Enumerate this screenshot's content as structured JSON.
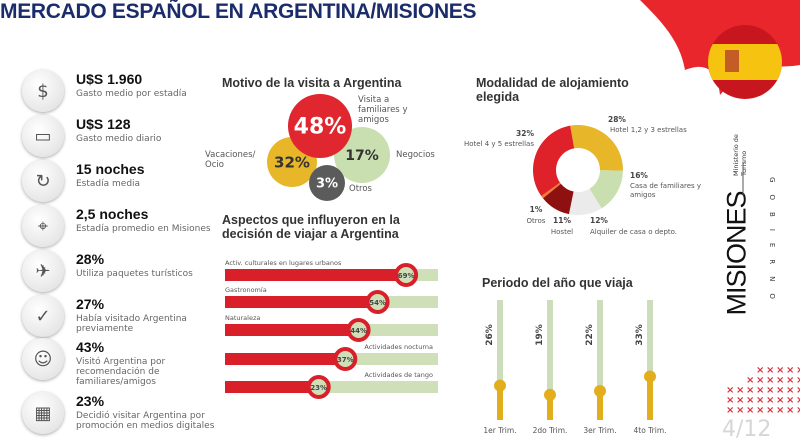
{
  "title": "MERCADO ESPAÑOL EN ARGENTINA/MISIONES",
  "stats": [
    {
      "value": "U$S 1.960",
      "desc": "Gasto medio por estadía",
      "icon": "money-chart-icon"
    },
    {
      "value": "U$S 128",
      "desc": "Gasto medio diario",
      "icon": "wallet-icon"
    },
    {
      "value": "15 noches",
      "desc": "Estadía media",
      "icon": "clock-cycle-icon"
    },
    {
      "value": "2,5 noches",
      "desc": "Estadía promedio en Misiones",
      "icon": "map-pin-icon"
    },
    {
      "value": "28%",
      "desc": "Utiliza paquetes turísticos",
      "icon": "luggage-plane-icon"
    },
    {
      "value": "27%",
      "desc": "Había visitado Argentina previamente",
      "icon": "repeat-check-icon"
    },
    {
      "value": "43%",
      "desc": "Visitó Argentina por recomendación de familiares/amigos",
      "icon": "people-icon"
    },
    {
      "value": "23%",
      "desc": "Decidió visitar Argentina por promoción en medios digitales",
      "icon": "digital-media-icon"
    }
  ],
  "chart_data": [
    {
      "type": "bubble",
      "title": "Motivo de la visita a Argentina",
      "categories": [
        "Visita a familiares y amigos",
        "Vacaciones/ Ocio",
        "Negocios",
        "Otros"
      ],
      "values": [
        48,
        32,
        17,
        3
      ],
      "labels": [
        "48%",
        "32%",
        "17%",
        "3%"
      ],
      "colors": [
        "#e0262e",
        "#e8b629",
        "#c9dfb0",
        "#5b5b5b"
      ]
    },
    {
      "type": "bar",
      "title": "Aspectos que influyeron en la decisión de viajar a Argentina",
      "categories": [
        "Activ. culturales en lugares urbanos",
        "Gastronomía",
        "Naturaleza",
        "Actividades nocturna",
        "Actividades de tango"
      ],
      "values": [
        69,
        54,
        44,
        37,
        23
      ],
      "labels": [
        "69%",
        "54%",
        "44%",
        "37%",
        "23%"
      ],
      "ylim": [
        0,
        100
      ],
      "colors": {
        "fill": "#d9202a",
        "track": "#cfe0b8"
      }
    },
    {
      "type": "pie",
      "title": "Modalidad de alojamiento elegida",
      "categories": [
        "Hotel 1,2 y 3 estrellas",
        "Casa de familiares y amigos",
        "Alquiler de casa o depto.",
        "Hostel",
        "Otros",
        "Hotel 4 y 5 estrellas"
      ],
      "values": [
        28,
        16,
        12,
        11,
        1,
        32
      ],
      "labels": [
        "28%",
        "16%",
        "12%",
        "11%",
        "1%",
        "32%"
      ],
      "colors": [
        "#e8b629",
        "#c9dfb0",
        "#ebebeb",
        "#8e1010",
        "#f07a30",
        "#df2129"
      ]
    },
    {
      "type": "bar",
      "title": "Periodo del año que viaja",
      "categories": [
        "1er Trim.",
        "2do Trim.",
        "3er Trim.",
        "4to Trim."
      ],
      "values": [
        26,
        19,
        22,
        33
      ],
      "labels": [
        "26%",
        "19%",
        "22%",
        "33%"
      ],
      "ylim": [
        0,
        100
      ],
      "colors": {
        "fill": "#e3ae1e",
        "track": "#cddcbb"
      }
    }
  ],
  "logo": {
    "name": "MISIONES",
    "sub": "GOBIERNO",
    "ministry": "Ministerio de Turismo"
  },
  "page": "4/12",
  "colors": {
    "title": "#1b2c6b",
    "red": "#e0262e"
  }
}
